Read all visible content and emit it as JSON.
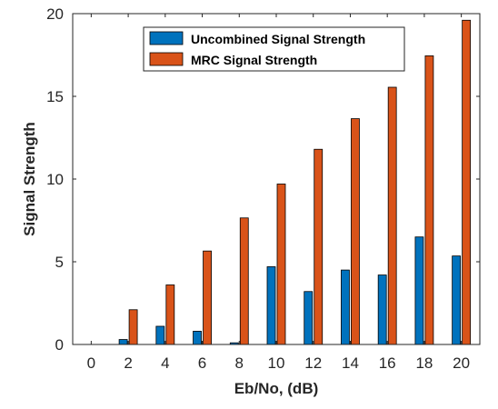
{
  "chart_data": {
    "type": "bar",
    "title": "",
    "xlabel": "Eb/No, (dB)",
    "ylabel": "Signal Strength",
    "categories": [
      0,
      2,
      4,
      6,
      8,
      10,
      12,
      14,
      16,
      18,
      20
    ],
    "x_ticks": [
      "0",
      "2",
      "4",
      "6",
      "8",
      "10",
      "12",
      "14",
      "16",
      "18",
      "20"
    ],
    "y_ticks": [
      "0",
      "5",
      "10",
      "15",
      "20"
    ],
    "ylim": [
      0,
      20
    ],
    "xlim": [
      -1,
      21
    ],
    "grid": false,
    "legend_position": "top-center",
    "series": [
      {
        "name": "Uncombined Signal Strength",
        "color": "#0072BD",
        "values": [
          0,
          0.3,
          1.1,
          0.8,
          0.1,
          4.7,
          3.2,
          4.5,
          4.2,
          6.5,
          5.35
        ]
      },
      {
        "name": "MRC Signal Strength",
        "color": "#D95319",
        "values": [
          0,
          2.1,
          3.6,
          5.65,
          7.65,
          9.7,
          11.8,
          13.65,
          15.55,
          17.45,
          19.6
        ]
      }
    ]
  }
}
